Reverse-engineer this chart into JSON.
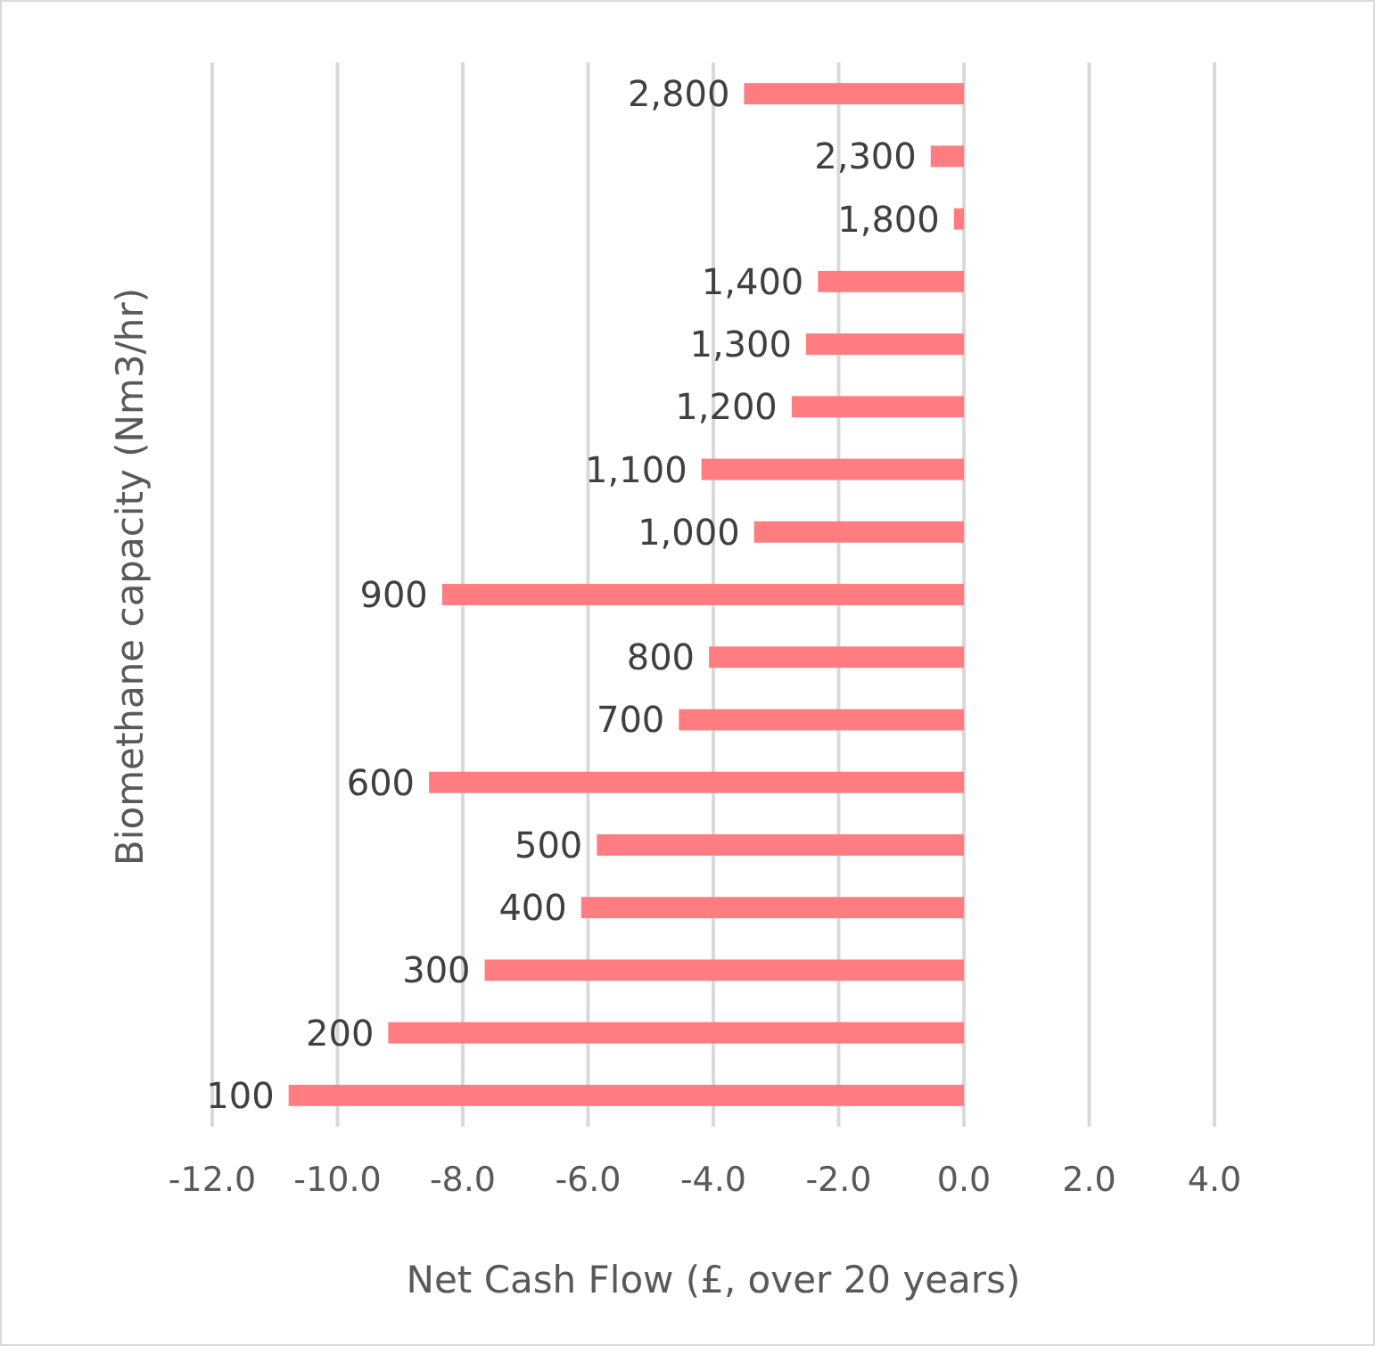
{
  "chart_data": {
    "type": "bar",
    "orientation": "horizontal",
    "xlabel": "Net Cash Flow (£, over 20 years)",
    "ylabel": "Biomethane capacity (Nm3/hr)",
    "categories": [
      "2,800",
      "2,300",
      "1,800",
      "1,400",
      "1,300",
      "1,200",
      "1,100",
      "1,000",
      "900",
      "800",
      "700",
      "600",
      "500",
      "400",
      "300",
      "200",
      "100"
    ],
    "values": [
      -3.51,
      -0.53,
      -0.16,
      -2.33,
      -2.52,
      -2.75,
      -4.19,
      -3.35,
      -8.33,
      -4.07,
      -4.55,
      -8.54,
      -5.86,
      -6.11,
      -7.65,
      -9.19,
      -10.78
    ],
    "color": "#ff7c80",
    "xlim": [
      -12,
      4
    ],
    "xticks": [
      {
        "value": -12,
        "label": "-12.0"
      },
      {
        "value": -10,
        "label": "-10.0"
      },
      {
        "value": -8,
        "label": "-8.0"
      },
      {
        "value": -6,
        "label": "-6.0"
      },
      {
        "value": -4,
        "label": "-4.0"
      },
      {
        "value": -2,
        "label": "-2.0"
      },
      {
        "value": 0,
        "label": "0.0"
      },
      {
        "value": 2,
        "label": "2.0"
      },
      {
        "value": 4,
        "label": "4.0"
      }
    ],
    "grid": "x"
  }
}
